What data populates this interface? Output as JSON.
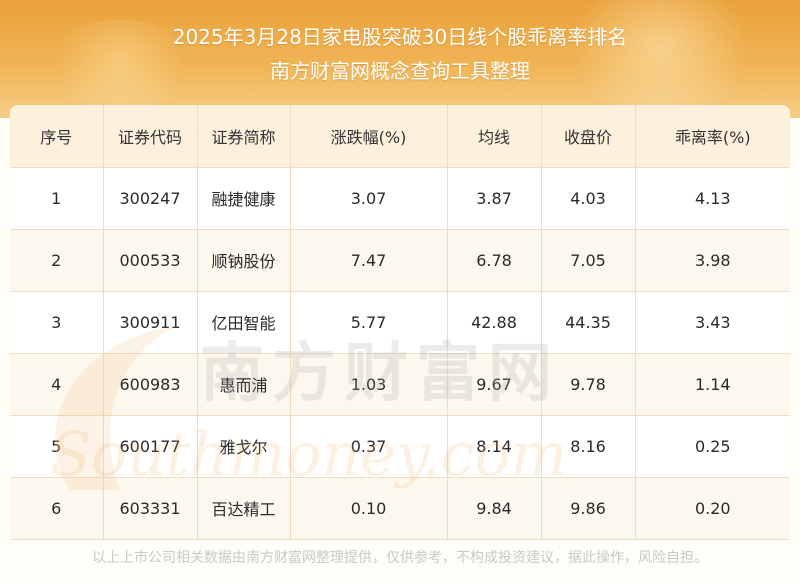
{
  "header": {
    "title_line1": "2025年3月28日家电股突破30日线个股乖离率排名",
    "title_line2": "南方财富网概念查询工具整理"
  },
  "table": {
    "columns": [
      "序号",
      "证券代码",
      "证券简称",
      "涨跌幅(%)",
      "均线",
      "收盘价",
      "乖离率(%)"
    ],
    "rows": [
      [
        "1",
        "300247",
        "融捷健康",
        "3.07",
        "3.87",
        "4.03",
        "4.13"
      ],
      [
        "2",
        "000533",
        "顺钠股份",
        "7.47",
        "6.78",
        "7.05",
        "3.98"
      ],
      [
        "3",
        "300911",
        "亿田智能",
        "5.77",
        "42.88",
        "44.35",
        "3.43"
      ],
      [
        "4",
        "600983",
        "惠而浦",
        "1.03",
        "9.67",
        "9.78",
        "1.14"
      ],
      [
        "5",
        "600177",
        "雅戈尔",
        "0.37",
        "8.14",
        "8.16",
        "0.25"
      ],
      [
        "6",
        "603331",
        "百达精工",
        "0.10",
        "9.84",
        "9.86",
        "0.20"
      ]
    ]
  },
  "watermark": {
    "cn": "南方财富网",
    "en": "Southmoney.com"
  },
  "footer": {
    "disclaimer": "以上上市公司相关数据由南方财富网整理提供，仅供参考，不构成投资建议，据此操作，风险自担。"
  },
  "colors": {
    "banner_top": "#e9a13a",
    "banner_bottom": "#f6cd86",
    "header_row": "#fdf1de",
    "stripe_row": "#fdf8ee",
    "border": "#f0dcc0"
  }
}
